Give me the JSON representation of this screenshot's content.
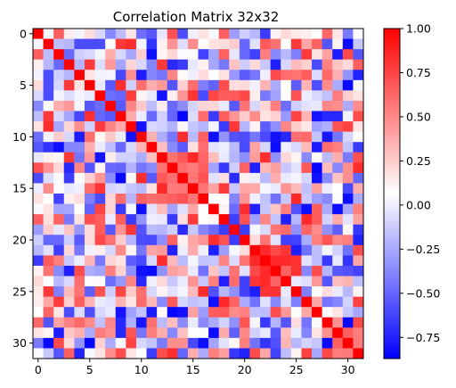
{
  "chart_data": {
    "type": "heatmap",
    "title": "Correlation Matrix 32x32",
    "xlabel": "",
    "ylabel": "",
    "n": 32,
    "x_ticks": [
      0,
      5,
      10,
      15,
      20,
      25,
      30
    ],
    "y_ticks": [
      0,
      5,
      10,
      15,
      20,
      25,
      30
    ],
    "colormap": "bwr",
    "colors": {
      "low": "#0000ff",
      "mid": "#ffffff",
      "high": "#ff0000"
    },
    "vmin": -0.87,
    "vmax": 1.0,
    "colorbar_ticks": [
      1.0,
      0.75,
      0.5,
      0.25,
      0.0,
      -0.25,
      -0.5,
      -0.75
    ],
    "colorbar_tick_labels": [
      "1.00",
      "0.75",
      "0.50",
      "0.25",
      "0.00",
      "−0.25",
      "−0.50",
      "−0.75"
    ],
    "blocks": [
      {
        "start": 12,
        "end": 16,
        "strength": 0.75
      },
      {
        "start": 21,
        "end": 24,
        "strength": 0.8
      },
      {
        "start": 29,
        "end": 31,
        "strength": 0.7
      }
    ],
    "diagonal": 1.0,
    "off_diagonal_range": [
      -0.87,
      0.85
    ]
  }
}
